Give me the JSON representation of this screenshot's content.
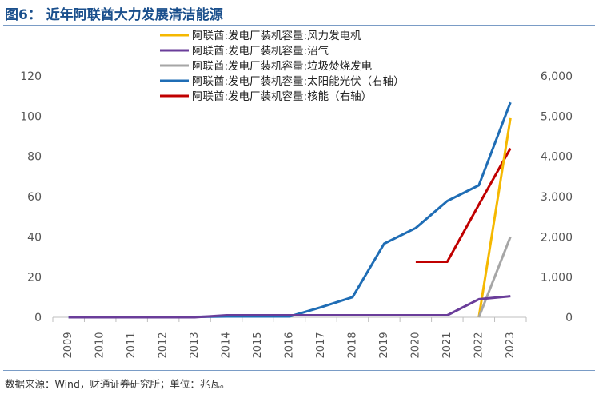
{
  "title": "图6： 近年阿联酋大力发展清洁能源",
  "source": "数据来源：Wind，财通证券研究所；单位：兆瓦。",
  "chart_data": {
    "type": "line",
    "title": "图6： 近年阿联酋大力发展清洁能源",
    "x": [
      "2009",
      "2010",
      "2011",
      "2012",
      "2013",
      "2014",
      "2015",
      "2016",
      "2017",
      "2018",
      "2019",
      "2020",
      "2021",
      "2022",
      "2023"
    ],
    "y_left": {
      "ticks": [
        0,
        20,
        40,
        60,
        80,
        100,
        120
      ],
      "range": [
        0,
        120
      ]
    },
    "y_right": {
      "ticks": [
        "0",
        "1,000",
        "2,000",
        "3,000",
        "4,000",
        "5,000",
        "6,000"
      ],
      "range": [
        0,
        6000
      ]
    },
    "grid": false,
    "legend_position": "top",
    "series": [
      {
        "name": "阿联酋:发电厂装机容量:风力发电机",
        "axis": "left",
        "color": "#f5b800",
        "values": [
          null,
          null,
          null,
          null,
          null,
          null,
          null,
          null,
          null,
          null,
          null,
          null,
          null,
          0,
          99
        ]
      },
      {
        "name": "阿联酋:发电厂装机容量:沼气",
        "axis": "left",
        "color": "#6a3d9a",
        "values": [
          0,
          0,
          0,
          0,
          0,
          1,
          1,
          1,
          1,
          1,
          1,
          1,
          1,
          9,
          10.5
        ]
      },
      {
        "name": "阿联酋:发电厂装机容量:垃圾焚烧发电",
        "axis": "left",
        "color": "#a6a6a6",
        "values": [
          null,
          null,
          null,
          null,
          null,
          null,
          null,
          null,
          null,
          null,
          null,
          null,
          null,
          0,
          40
        ]
      },
      {
        "name": "阿联酋:发电厂装机容量:太阳能光伏（右轴）",
        "axis": "right",
        "color": "#1f6db5",
        "values": [
          0,
          0,
          0,
          0,
          10,
          20,
          20,
          20,
          250,
          500,
          1830,
          2220,
          2890,
          3280,
          5340
        ]
      },
      {
        "name": "阿联酋:发电厂装机容量:核能（右轴）",
        "axis": "right",
        "color": "#c00000",
        "values": [
          null,
          null,
          null,
          null,
          null,
          null,
          null,
          null,
          null,
          null,
          null,
          1380,
          1380,
          2800,
          4200
        ]
      }
    ]
  }
}
